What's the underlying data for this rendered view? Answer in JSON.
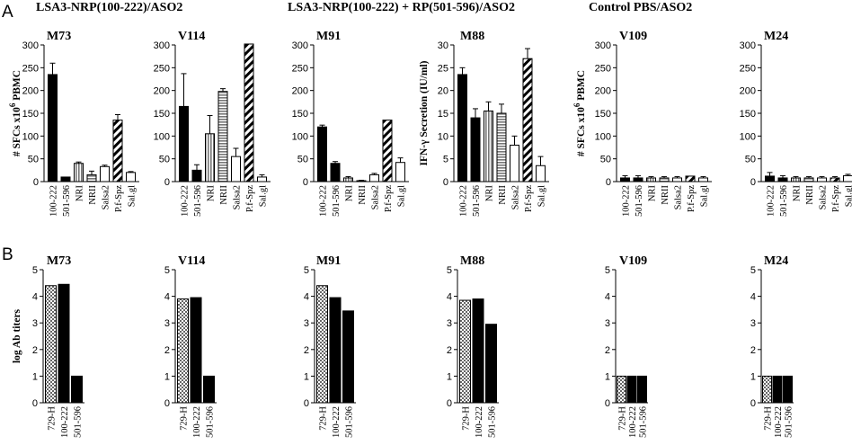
{
  "panels": [
    {
      "letter": "A",
      "group_titles": [
        "LSA3-NRP(100-222)/ASO2",
        "LSA3-NRP(100-222) + RP(501-596)/ASO2",
        "Control PBS/ASO2"
      ]
    },
    {
      "letter": "B"
    }
  ],
  "colors": {
    "black": "#000000",
    "grey": "#888888",
    "white": "#ffffff",
    "hatch": "#000000",
    "checker": "#bbbbbb"
  },
  "chart_data": [
    {
      "panel": "A",
      "type": "bar",
      "title": "M73",
      "ylabel_main": "# SFCs x10",
      "ylabel_sup": "6",
      "ylabel_tail": " PBMC",
      "ylim": [
        0,
        300
      ],
      "yticks": [
        0,
        50,
        100,
        150,
        200,
        250,
        300
      ],
      "categories": [
        "100-222",
        "501-596",
        "NRI",
        "NRII",
        "Salsa2",
        "P.f-Spz",
        "Sal.gl"
      ],
      "values": [
        235,
        10,
        40,
        15,
        33,
        135,
        20
      ],
      "errors": [
        25,
        0,
        3,
        8,
        3,
        12,
        2
      ]
    },
    {
      "panel": "A",
      "type": "bar",
      "title": "V114",
      "ylim": [
        0,
        300
      ],
      "yticks": [
        0,
        50,
        100,
        150,
        200,
        250,
        300
      ],
      "categories": [
        "100-222",
        "501-596",
        "NRI",
        "NRII",
        "Salsa2",
        "P.f-Spz",
        "Sal.gl"
      ],
      "values": [
        165,
        25,
        105,
        198,
        55,
        302,
        10
      ],
      "errors": [
        72,
        12,
        40,
        6,
        18,
        0,
        5
      ]
    },
    {
      "panel": "A",
      "type": "bar",
      "title": "M91",
      "ylim": [
        0,
        300
      ],
      "yticks": [
        0,
        50,
        100,
        150,
        200,
        250,
        300
      ],
      "categories": [
        "100-222",
        "501-596",
        "NRI",
        "NRII",
        "Salsa2",
        "P.f-Spz",
        "Sal.gl"
      ],
      "values": [
        120,
        40,
        8,
        2,
        15,
        135,
        42
      ],
      "errors": [
        4,
        4,
        3,
        1,
        3,
        0,
        10
      ]
    },
    {
      "panel": "A",
      "type": "bar",
      "title": "M88",
      "ylabel_main": "IFN-γ Secretion (IU/ml)",
      "ylim": [
        0,
        30
      ],
      "yticks": [
        0,
        5,
        10,
        15,
        20,
        25,
        30
      ],
      "categories": [
        "100-222",
        "501-596",
        "NRI",
        "NRII",
        "Salsa2",
        "P.f-Spz",
        "Sal.gl"
      ],
      "values": [
        23.5,
        14,
        15.5,
        15,
        8,
        27,
        3.5
      ],
      "errors": [
        1.5,
        2,
        2,
        2,
        2,
        2.2,
        2
      ]
    },
    {
      "panel": "A",
      "type": "bar",
      "title": "V109",
      "ylabel_main": "# SFCs x10",
      "ylabel_sup": "6",
      "ylabel_tail": " PBMC",
      "ylim": [
        0,
        300
      ],
      "yticks": [
        0,
        50,
        100,
        150,
        200,
        250,
        300
      ],
      "categories": [
        "100-222",
        "501-596",
        "NRI",
        "NRII",
        "Salsa2",
        "P.f-Spz",
        "Sal.gl"
      ],
      "values": [
        8,
        8,
        8,
        8,
        8,
        12,
        8
      ],
      "errors": [
        5,
        5,
        3,
        3,
        3,
        0,
        3
      ]
    },
    {
      "panel": "A",
      "type": "bar",
      "title": "M24",
      "ylim": [
        0,
        300
      ],
      "yticks": [
        0,
        50,
        100,
        150,
        200,
        250,
        300
      ],
      "categories": [
        "100-222",
        "501-596",
        "NRI",
        "NRII",
        "Salsa2",
        "P.f-Spz",
        "Sal.gl"
      ],
      "values": [
        12,
        8,
        8,
        8,
        8,
        8,
        13
      ],
      "errors": [
        8,
        5,
        3,
        3,
        3,
        3,
        3
      ]
    },
    {
      "panel": "B",
      "type": "bar",
      "title": "M73",
      "ylabel_main": "log Ab titers",
      "ylim": [
        0,
        5
      ],
      "yticks": [
        0,
        1,
        2,
        3,
        4,
        5
      ],
      "categories": [
        "729-H",
        "100-222",
        "501-596"
      ],
      "values": [
        4.4,
        4.45,
        1.0
      ]
    },
    {
      "panel": "B",
      "type": "bar",
      "title": "V114",
      "ylim": [
        0,
        5
      ],
      "yticks": [
        0,
        1,
        2,
        3,
        4,
        5
      ],
      "categories": [
        "729-H",
        "100-222",
        "501-596"
      ],
      "values": [
        3.9,
        3.95,
        1.0
      ]
    },
    {
      "panel": "B",
      "type": "bar",
      "title": "M91",
      "ylim": [
        0,
        5
      ],
      "yticks": [
        0,
        1,
        2,
        3,
        4,
        5
      ],
      "categories": [
        "729-H",
        "100-222",
        "501-596"
      ],
      "values": [
        4.4,
        3.95,
        3.45
      ]
    },
    {
      "panel": "B",
      "type": "bar",
      "title": "M88",
      "ylim": [
        0,
        5
      ],
      "yticks": [
        0,
        1,
        2,
        3,
        4,
        5
      ],
      "categories": [
        "729-H",
        "100-222",
        "501-596"
      ],
      "values": [
        3.85,
        3.9,
        2.95
      ]
    },
    {
      "panel": "B",
      "type": "bar",
      "title": "V109",
      "ylim": [
        0,
        5
      ],
      "yticks": [
        0,
        1,
        2,
        3,
        4,
        5
      ],
      "categories": [
        "729-H",
        "100-222",
        "501-596"
      ],
      "values": [
        1.0,
        1.0,
        1.0
      ]
    },
    {
      "panel": "B",
      "type": "bar",
      "title": "M24",
      "ylim": [
        0,
        5
      ],
      "yticks": [
        0,
        1,
        2,
        3,
        4,
        5
      ],
      "categories": [
        "729-H",
        "100-222",
        "501-596"
      ],
      "values": [
        1.0,
        1.0,
        1.0
      ]
    }
  ]
}
